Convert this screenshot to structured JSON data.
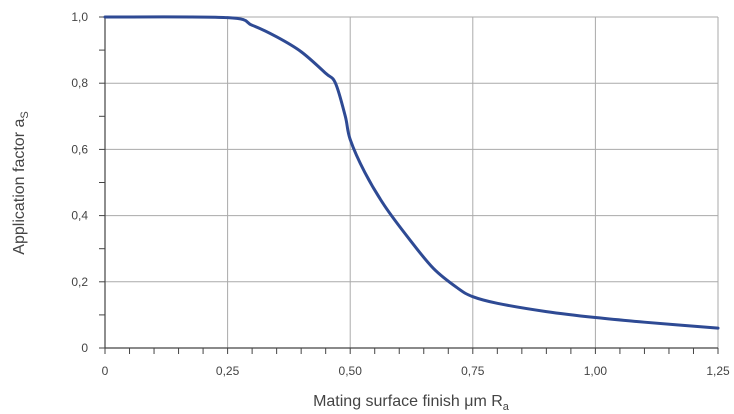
{
  "chart_data": {
    "type": "line",
    "title": "",
    "xlabel": {
      "main": "Mating surface finish μm R",
      "sub": "a"
    },
    "ylabel": {
      "main": "Application factor a",
      "sub": "S"
    },
    "xlim": [
      0,
      1.25
    ],
    "ylim": [
      0,
      1.0
    ],
    "x_ticks": [
      0,
      0.25,
      0.5,
      0.75,
      1.0,
      1.25
    ],
    "x_tick_labels": [
      "0",
      "0,25",
      "0,50",
      "0,75",
      "1,00",
      "1,25"
    ],
    "y_ticks": [
      0,
      0.2,
      0.4,
      0.6,
      0.8,
      1.0
    ],
    "y_tick_labels": [
      "0",
      "0,2",
      "0,4",
      "0,6",
      "0,8",
      "1,0"
    ],
    "x_minor_step": 0.05,
    "y_minor_step": 0.1,
    "grid": true,
    "legend": "none",
    "colors": {
      "line": "#2e4a94",
      "grid": "#aaaaaa",
      "axis": "#444444"
    },
    "series": [
      {
        "points": [
          [
            0.0,
            1.0
          ],
          [
            0.25,
            0.998
          ],
          [
            0.3,
            0.975
          ],
          [
            0.35,
            0.94
          ],
          [
            0.4,
            0.895
          ],
          [
            0.45,
            0.83
          ],
          [
            0.47,
            0.8
          ],
          [
            0.49,
            0.7
          ],
          [
            0.5,
            0.63
          ],
          [
            0.53,
            0.53
          ],
          [
            0.57,
            0.43
          ],
          [
            0.62,
            0.33
          ],
          [
            0.67,
            0.24
          ],
          [
            0.72,
            0.18
          ],
          [
            0.75,
            0.155
          ],
          [
            0.8,
            0.135
          ],
          [
            0.9,
            0.11
          ],
          [
            1.0,
            0.092
          ],
          [
            1.1,
            0.078
          ],
          [
            1.25,
            0.06
          ]
        ]
      }
    ]
  }
}
